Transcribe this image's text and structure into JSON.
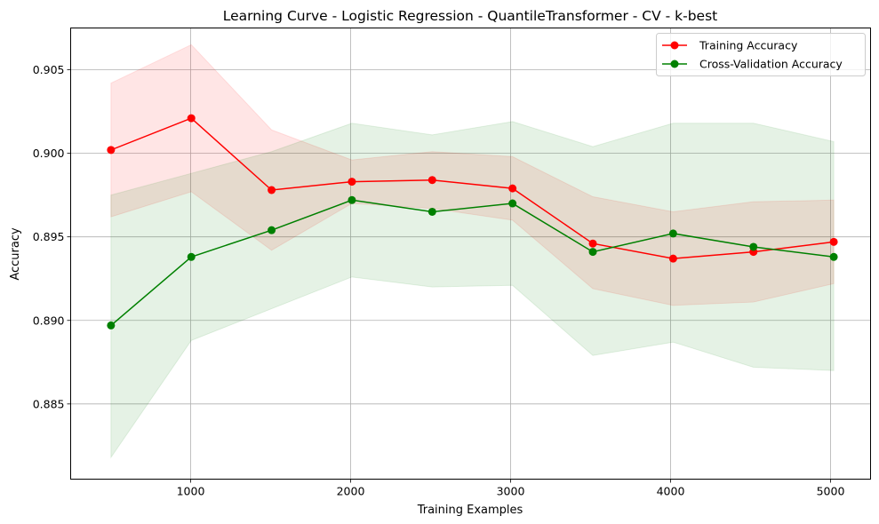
{
  "chart_data": {
    "type": "line",
    "title": "Learning Curve - Logistic Regression - QuantileTransformer - CV - k-best",
    "xlabel": "Training Examples",
    "ylabel": "Accuracy",
    "xlim": [
      250,
      5250
    ],
    "ylim": [
      0.8805,
      0.9075
    ],
    "xticks": [
      1000,
      2000,
      3000,
      4000,
      5000
    ],
    "yticks": [
      0.885,
      0.89,
      0.895,
      0.9,
      0.905
    ],
    "xtick_labels": [
      "1000",
      "2000",
      "3000",
      "4000",
      "5000"
    ],
    "ytick_labels": [
      "0.885",
      "0.890",
      "0.895",
      "0.900",
      "0.905"
    ],
    "grid": true,
    "legend_position": "top-right",
    "x": [
      502,
      1004,
      1506,
      2008,
      2510,
      3012,
      3514,
      4016,
      4518,
      5020
    ],
    "series": [
      {
        "name": "Training Accuracy",
        "color": "#ff0000",
        "band_color": "#ff0000",
        "values": [
          0.9002,
          0.9021,
          0.8978,
          0.8983,
          0.8984,
          0.8979,
          0.8946,
          0.8937,
          0.8941,
          0.8947
        ],
        "upper": [
          0.9042,
          0.9065,
          0.9014,
          0.8996,
          0.9001,
          0.8998,
          0.8974,
          0.8965,
          0.8971,
          0.8972
        ],
        "lower": [
          0.8962,
          0.8977,
          0.8942,
          0.897,
          0.8967,
          0.896,
          0.8919,
          0.8909,
          0.8911,
          0.8922
        ]
      },
      {
        "name": "Cross-Validation Accuracy",
        "color": "#008000",
        "band_color": "#008000",
        "values": [
          0.8897,
          0.8938,
          0.8954,
          0.8972,
          0.8965,
          0.897,
          0.8941,
          0.8952,
          0.8944,
          0.8938
        ],
        "upper": [
          0.8975,
          0.8988,
          0.9001,
          0.9018,
          0.9011,
          0.9019,
          0.9004,
          0.9018,
          0.9018,
          0.9007
        ],
        "lower": [
          0.8818,
          0.8888,
          0.8907,
          0.8926,
          0.892,
          0.8921,
          0.8879,
          0.8887,
          0.8872,
          0.887
        ]
      }
    ]
  }
}
